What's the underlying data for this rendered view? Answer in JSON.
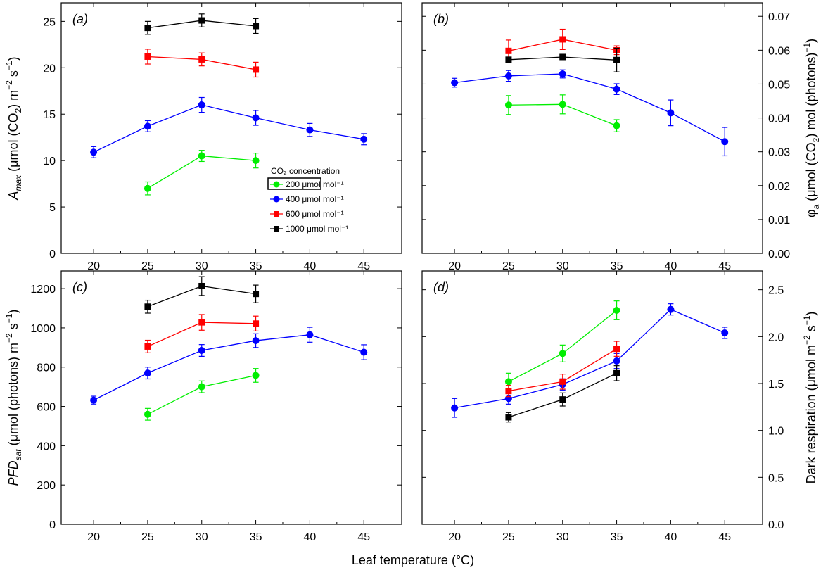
{
  "figure": {
    "xlabel": "Leaf temperature (°C)",
    "legend_title": "CO₂ concentration"
  },
  "chart_data": [
    {
      "type": "line",
      "panel": "(a)",
      "ylabel_parts": [
        "A",
        "max",
        " (μmol (CO",
        "2",
        ") m",
        "−2",
        " s",
        "−1",
        ")"
      ],
      "x_ticks": [
        20,
        25,
        30,
        35,
        40,
        45
      ],
      "y_ticks": [
        0,
        5,
        10,
        15,
        20,
        25
      ],
      "xlim": [
        17,
        48.5
      ],
      "ylim": [
        0,
        27
      ],
      "y_axis_side": "left",
      "legend": "inside",
      "series": [
        {
          "name": "200 μmol mol⁻¹",
          "color": "#00ee00",
          "marker": "circle",
          "x": [
            25,
            30,
            35
          ],
          "y": [
            7.0,
            10.5,
            10.0
          ],
          "err": [
            0.7,
            0.6,
            0.8
          ]
        },
        {
          "name": "400 μmol mol⁻¹",
          "color": "#0000ff",
          "marker": "circle",
          "x": [
            20,
            25,
            30,
            35,
            40,
            45
          ],
          "y": [
            10.9,
            13.7,
            16.0,
            14.6,
            13.3,
            12.3
          ],
          "err": [
            0.6,
            0.6,
            0.8,
            0.8,
            0.7,
            0.6
          ]
        },
        {
          "name": "600 μmol mol⁻¹",
          "color": "#ff0000",
          "marker": "square",
          "x": [
            25,
            30,
            35
          ],
          "y": [
            21.2,
            20.9,
            19.8
          ],
          "err": [
            0.8,
            0.7,
            0.8
          ]
        },
        {
          "name": "1000 μmol mol⁻¹",
          "color": "#000000",
          "marker": "square",
          "x": [
            25,
            30,
            35
          ],
          "y": [
            24.3,
            25.1,
            24.5
          ],
          "err": [
            0.7,
            0.7,
            0.8
          ]
        }
      ]
    },
    {
      "type": "line",
      "panel": "(b)",
      "ylabel_parts": [
        "φ",
        "a",
        " (μmol (CO",
        "2",
        ") mol (photons)",
        "−1",
        ")"
      ],
      "x_ticks": [
        20,
        25,
        30,
        35,
        40,
        45
      ],
      "y_ticks": [
        0.0,
        0.01,
        0.02,
        0.03,
        0.04,
        0.05,
        0.06,
        0.07
      ],
      "y_tick_labels": [
        "0.00",
        "0.01",
        "0.02",
        "0.03",
        "0.04",
        "0.05",
        "0.06",
        "0.07"
      ],
      "xlim": [
        17,
        48.5
      ],
      "ylim": [
        0,
        0.074
      ],
      "y_axis_side": "right",
      "series": [
        {
          "name": "200 μmol mol⁻¹",
          "color": "#00ee00",
          "marker": "circle",
          "x": [
            25,
            30,
            35
          ],
          "y": [
            0.0438,
            0.044,
            0.0377
          ],
          "err": [
            0.0028,
            0.0028,
            0.0018
          ]
        },
        {
          "name": "400 μmol mol⁻¹",
          "color": "#0000ff",
          "marker": "circle",
          "x": [
            20,
            25,
            30,
            35,
            40,
            45
          ],
          "y": [
            0.0504,
            0.0524,
            0.053,
            0.0485,
            0.0415,
            0.033
          ],
          "err": [
            0.0013,
            0.0016,
            0.0012,
            0.0016,
            0.0038,
            0.0042
          ]
        },
        {
          "name": "600 μmol mol⁻¹",
          "color": "#ff0000",
          "marker": "square",
          "x": [
            25,
            30,
            35
          ],
          "y": [
            0.0598,
            0.0632,
            0.06
          ],
          "err": [
            0.0032,
            0.003,
            0.0013
          ]
        },
        {
          "name": "1000 μmol mol⁻¹",
          "color": "#000000",
          "marker": "square",
          "x": [
            25,
            30,
            35
          ],
          "y": [
            0.0572,
            0.058,
            0.0571
          ],
          "err": [
            0.0,
            0.0007,
            0.0035
          ]
        }
      ]
    },
    {
      "type": "line",
      "panel": "(c)",
      "ylabel_parts": [
        "PFD",
        "sat",
        " (μmol (photons) m",
        "−2",
        " s",
        "−1",
        ")"
      ],
      "x_ticks": [
        20,
        25,
        30,
        35,
        40,
        45
      ],
      "y_ticks": [
        0,
        200,
        400,
        600,
        800,
        1000,
        1200
      ],
      "xlim": [
        17,
        48.5
      ],
      "ylim": [
        0,
        1290
      ],
      "y_axis_side": "left",
      "series": [
        {
          "name": "200 μmol mol⁻¹",
          "color": "#00ee00",
          "marker": "circle",
          "x": [
            25,
            30,
            35
          ],
          "y": [
            560,
            700,
            758
          ],
          "err": [
            30,
            30,
            35
          ]
        },
        {
          "name": "400 μmol mol⁻¹",
          "color": "#0000ff",
          "marker": "circle",
          "x": [
            20,
            25,
            30,
            35,
            40,
            45
          ],
          "y": [
            632,
            770,
            885,
            935,
            965,
            876
          ],
          "err": [
            20,
            30,
            30,
            35,
            38,
            38
          ]
        },
        {
          "name": "600 μmol mol⁻¹",
          "color": "#ff0000",
          "marker": "square",
          "x": [
            25,
            30,
            35
          ],
          "y": [
            905,
            1028,
            1022
          ],
          "err": [
            32,
            40,
            38
          ]
        },
        {
          "name": "1000 μmol mol⁻¹",
          "color": "#000000",
          "marker": "square",
          "x": [
            25,
            30,
            35
          ],
          "y": [
            1108,
            1213,
            1173
          ],
          "err": [
            33,
            48,
            45
          ]
        }
      ]
    },
    {
      "type": "line",
      "panel": "(d)",
      "ylabel_parts": [
        "Dark respiration (μmol m",
        "−2",
        " s",
        "−1",
        ")"
      ],
      "x_ticks": [
        20,
        25,
        30,
        35,
        40,
        45
      ],
      "y_ticks": [
        0.0,
        0.5,
        1.0,
        1.5,
        2.0,
        2.5
      ],
      "y_tick_labels": [
        "0.0",
        "0.5",
        "1.0",
        "1.5",
        "2.0",
        "2.5"
      ],
      "xlim": [
        17,
        48.5
      ],
      "ylim": [
        0,
        2.7
      ],
      "y_axis_side": "right",
      "series": [
        {
          "name": "200 μmol mol⁻¹",
          "color": "#00ee00",
          "marker": "circle",
          "x": [
            25,
            30,
            35
          ],
          "y": [
            1.52,
            1.82,
            2.28
          ],
          "err": [
            0.09,
            0.09,
            0.1
          ]
        },
        {
          "name": "400 μmol mol⁻¹",
          "color": "#0000ff",
          "marker": "circle",
          "x": [
            20,
            25,
            30,
            35,
            40,
            45
          ],
          "y": [
            1.24,
            1.34,
            1.49,
            1.74,
            2.29,
            2.04
          ],
          "err": [
            0.1,
            0.06,
            0.06,
            0.08,
            0.06,
            0.06
          ]
        },
        {
          "name": "600 μmol mol⁻¹",
          "color": "#ff0000",
          "marker": "square",
          "x": [
            25,
            30,
            35
          ],
          "y": [
            1.42,
            1.52,
            1.87
          ],
          "err": [
            0.06,
            0.08,
            0.08
          ]
        },
        {
          "name": "1000 μmol mol⁻¹",
          "color": "#000000",
          "marker": "square",
          "x": [
            25,
            30,
            35
          ],
          "y": [
            1.14,
            1.33,
            1.61
          ],
          "err": [
            0.05,
            0.07,
            0.08
          ]
        }
      ]
    }
  ]
}
